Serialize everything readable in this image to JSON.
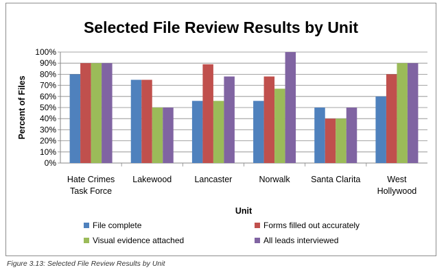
{
  "chart_data": {
    "type": "bar",
    "title": "Selected File Review Results by Unit",
    "xlabel": "Unit",
    "ylabel": "Percent of Files",
    "ylim": [
      0,
      100
    ],
    "yticks": [
      "0%",
      "10%",
      "20%",
      "30%",
      "40%",
      "50%",
      "60%",
      "70%",
      "80%",
      "90%",
      "100%"
    ],
    "categories": [
      [
        "Hate Crimes",
        "Task Force"
      ],
      [
        "Lakewood"
      ],
      [
        "Lancaster"
      ],
      [
        "Norwalk"
      ],
      [
        "Santa Clarita"
      ],
      [
        "West",
        "Hollywood"
      ]
    ],
    "series": [
      {
        "name": "File complete",
        "color": "#4f81bd",
        "values": [
          80,
          75,
          56,
          56,
          50,
          60
        ]
      },
      {
        "name": "Forms filled out accurately",
        "color": "#c0504d",
        "values": [
          90,
          75,
          89,
          78,
          40,
          80
        ]
      },
      {
        "name": "Visual evidence attached",
        "color": "#9bbb59",
        "values": [
          90,
          50,
          56,
          67,
          40,
          90
        ]
      },
      {
        "name": "All leads interviewed",
        "color": "#8064a2",
        "values": [
          90,
          50,
          78,
          100,
          50,
          90
        ]
      }
    ],
    "grid": true,
    "legend_position": "bottom"
  },
  "caption": "Figure 3.13: Selected File Review Results by Unit"
}
